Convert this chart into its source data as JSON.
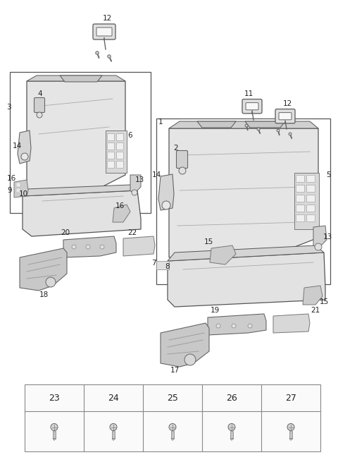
{
  "bg_color": "#f5f5f5",
  "line_color": "#444444",
  "fig_width": 4.8,
  "fig_height": 6.55,
  "dpi": 100,
  "table_labels": [
    "23",
    "24",
    "25",
    "26",
    "27"
  ],
  "label_color": "#222222",
  "screw_color": "#666666",
  "part_fill": "#e8e8e8",
  "part_edge": "#555555",
  "grid_fill": "#d0d0d0",
  "grid_edge": "#888888"
}
